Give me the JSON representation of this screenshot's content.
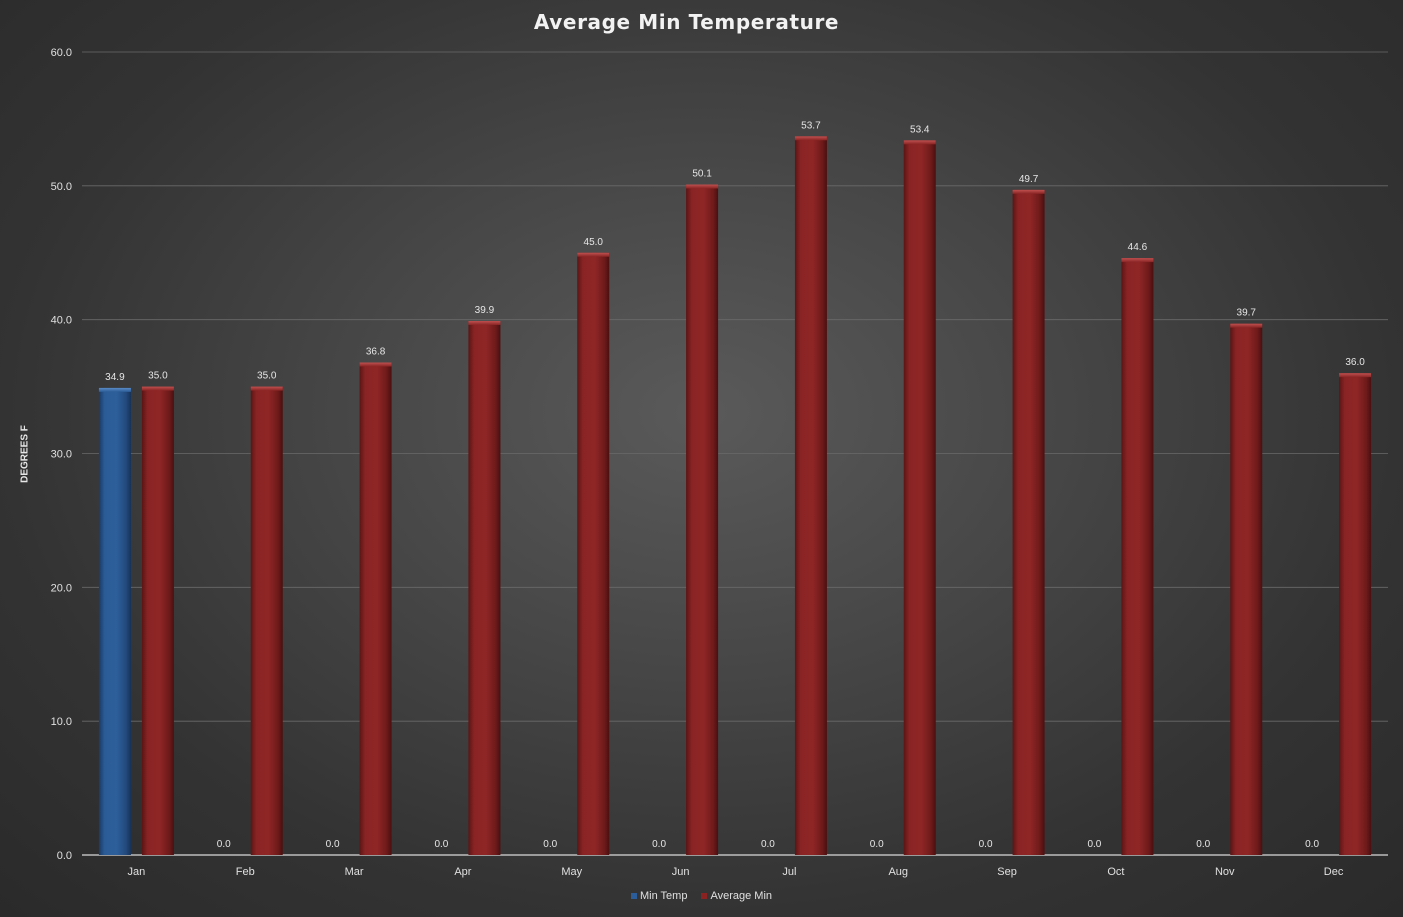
{
  "chart_data": {
    "type": "bar",
    "title": "Average Min Temperature",
    "xlabel": "",
    "ylabel": "DEGREES F",
    "ylim": [
      0,
      60
    ],
    "yticks": [
      "0.0",
      "10.0",
      "20.0",
      "30.0",
      "40.0",
      "50.0",
      "60.0"
    ],
    "grid": true,
    "legend_position": "bottom",
    "categories": [
      "Jan",
      "Feb",
      "Mar",
      "Apr",
      "May",
      "Jun",
      "Jul",
      "Aug",
      "Sep",
      "Oct",
      "Nov",
      "Dec"
    ],
    "series": [
      {
        "name": "Min Temp",
        "color": "#2a5d9a",
        "values": [
          34.9,
          0.0,
          0.0,
          0.0,
          0.0,
          0.0,
          0.0,
          0.0,
          0.0,
          0.0,
          0.0,
          0.0
        ],
        "labels": [
          "34.9",
          "0.0",
          "0.0",
          "0.0",
          "0.0",
          "0.0",
          "0.0",
          "0.0",
          "0.0",
          "0.0",
          "0.0",
          "0.0"
        ]
      },
      {
        "name": "Average Min",
        "color": "#8b2222",
        "values": [
          35.0,
          35.0,
          36.8,
          39.9,
          45.0,
          50.1,
          53.7,
          53.4,
          49.7,
          44.6,
          39.7,
          36.0
        ],
        "labels": [
          "35.0",
          "35.0",
          "36.8",
          "39.9",
          "45.0",
          "50.1",
          "53.7",
          "53.4",
          "49.7",
          "44.6",
          "39.7",
          "36.0"
        ]
      }
    ]
  }
}
